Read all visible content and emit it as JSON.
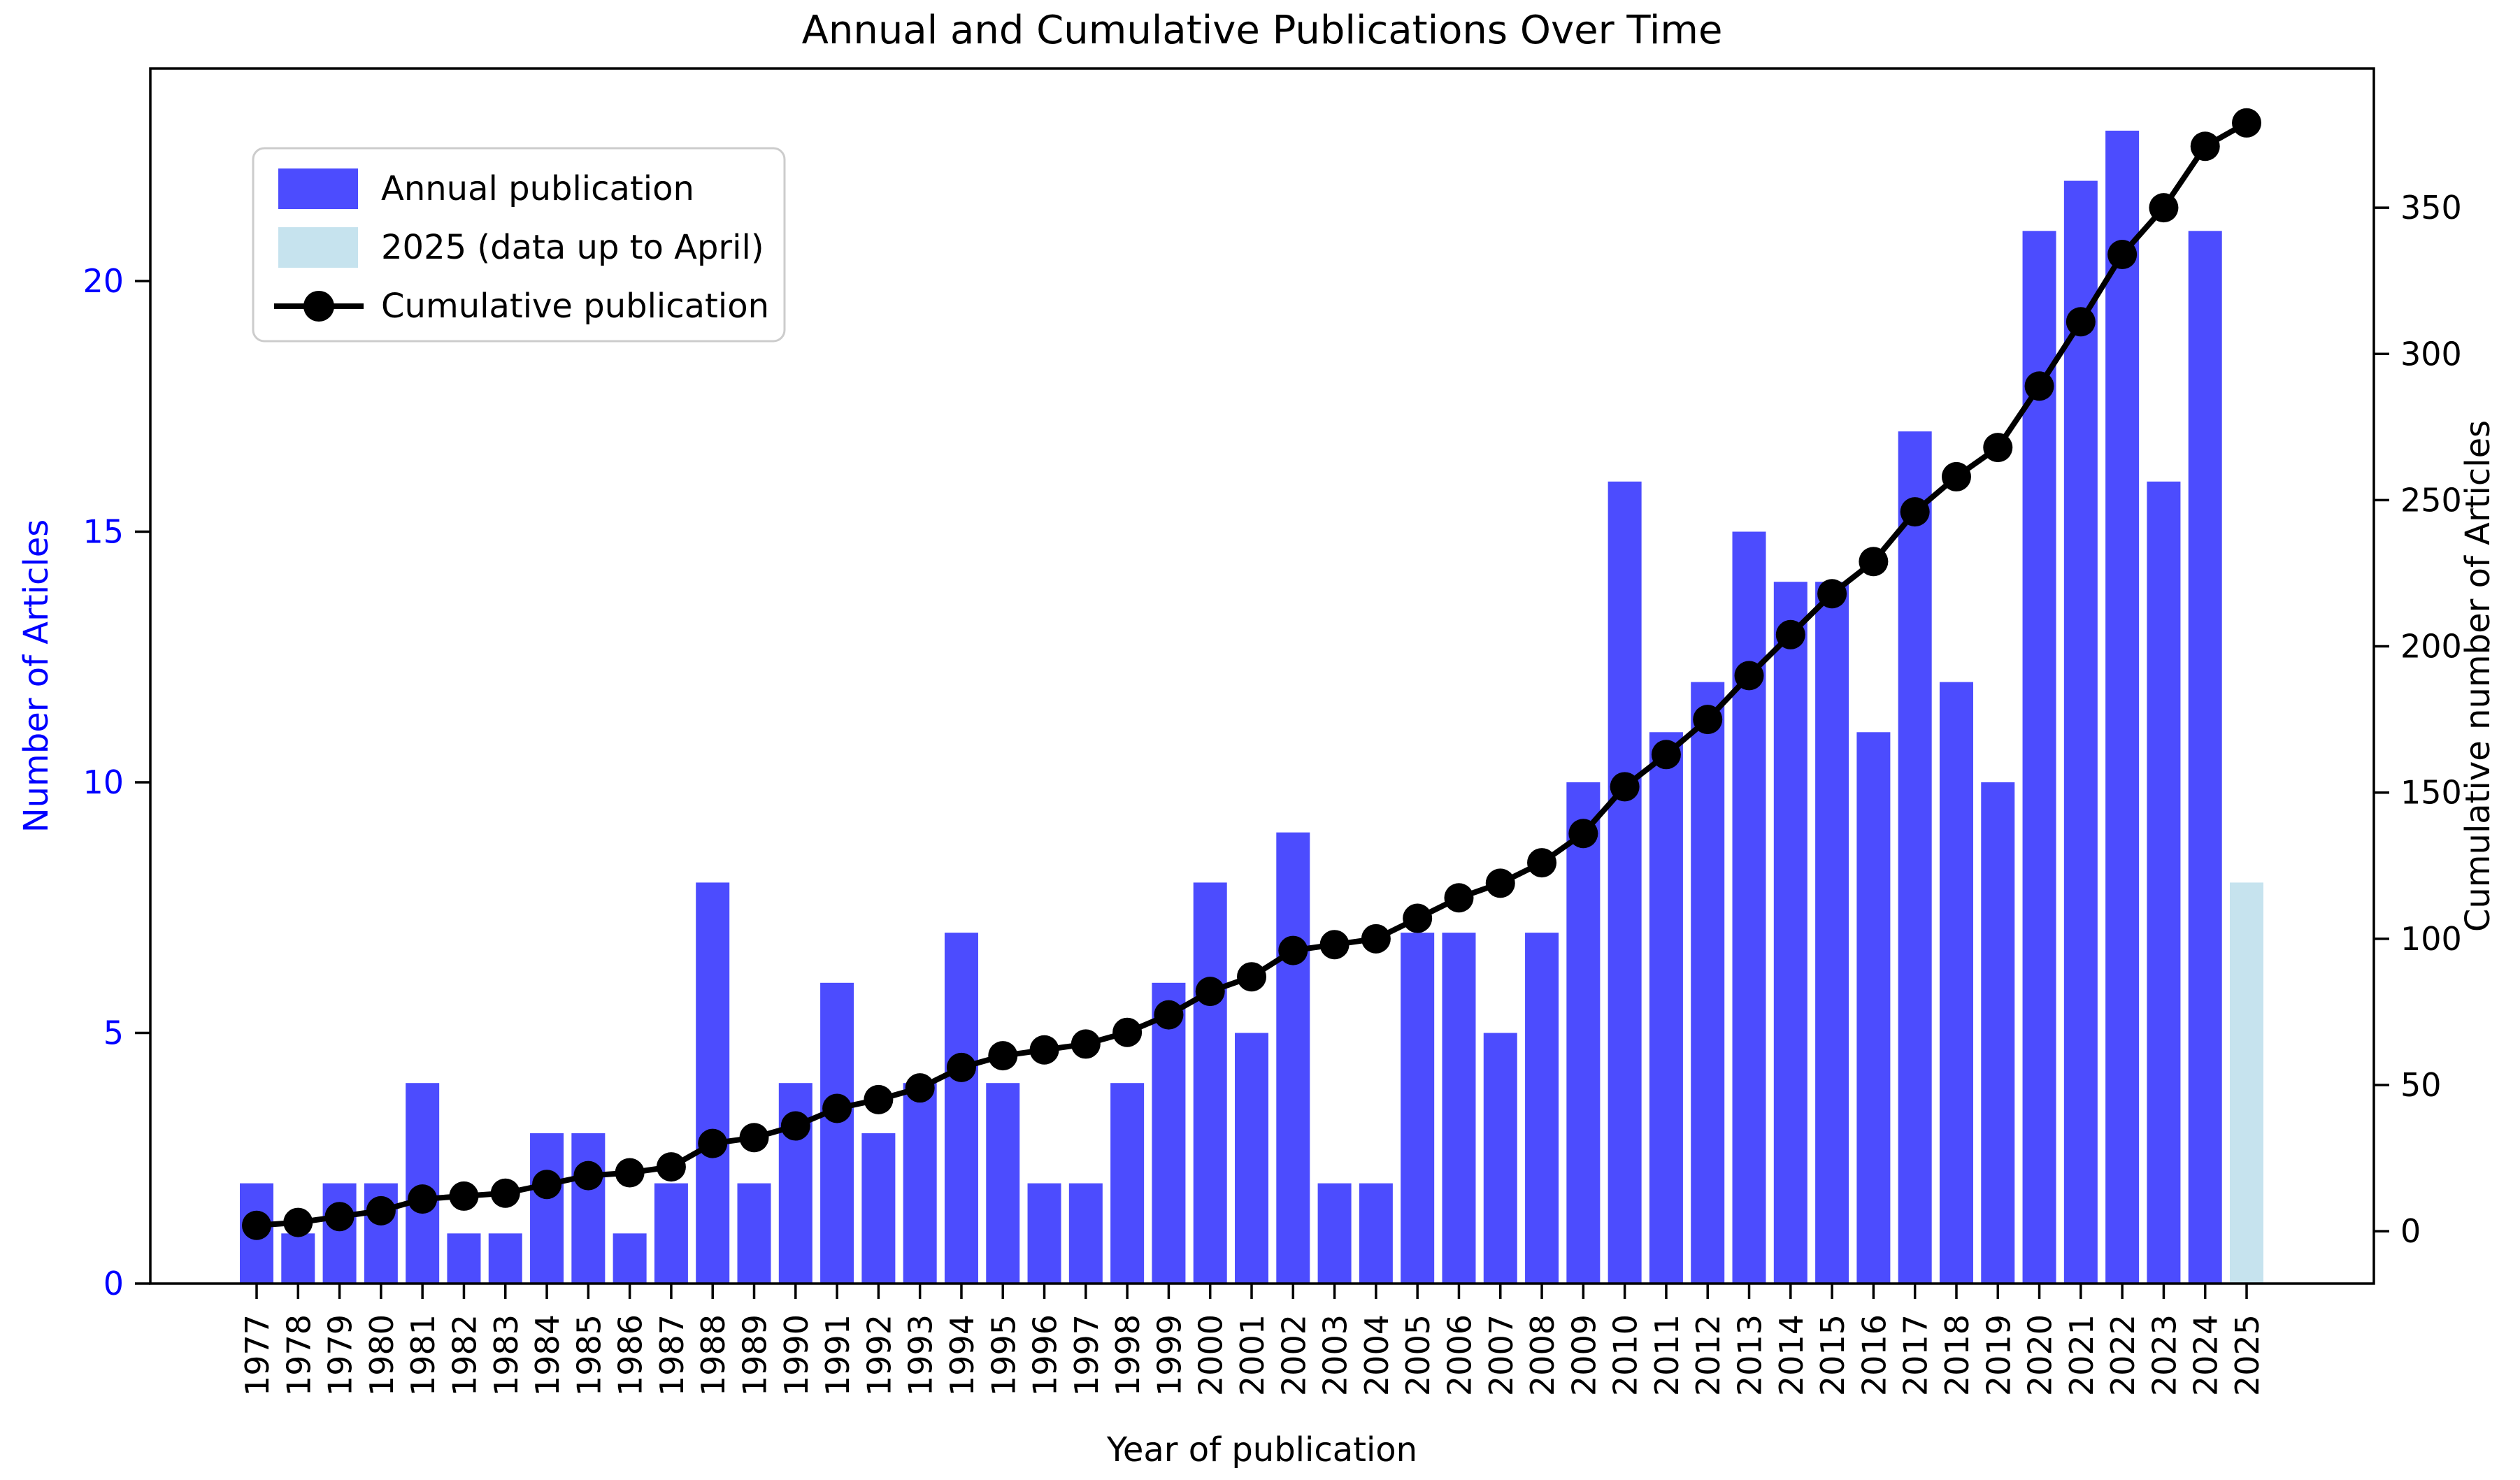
{
  "title": "Annual and Cumulative Publications Over Time",
  "chart_data": {
    "type": "bar+line",
    "title": "Annual and Cumulative Publications Over Time",
    "xlabel": "Year of publication",
    "ylabel_left": "Number of Articles",
    "ylabel_right": "Cumulative number of Articles",
    "categories": [
      1977,
      1978,
      1979,
      1980,
      1981,
      1982,
      1983,
      1984,
      1985,
      1986,
      1987,
      1988,
      1989,
      1990,
      1991,
      1992,
      1993,
      1994,
      1995,
      1996,
      1997,
      1998,
      1999,
      2000,
      2001,
      2002,
      2003,
      2004,
      2005,
      2006,
      2007,
      2008,
      2009,
      2010,
      2011,
      2012,
      2013,
      2014,
      2015,
      2016,
      2017,
      2018,
      2019,
      2020,
      2021,
      2022,
      2023,
      2024,
      2025
    ],
    "series": [
      {
        "name": "Annual publication",
        "type": "bar",
        "axis": "left",
        "values": [
          2,
          1,
          2,
          2,
          4,
          1,
          1,
          3,
          3,
          1,
          2,
          8,
          2,
          4,
          6,
          3,
          4,
          7,
          4,
          2,
          2,
          4,
          6,
          8,
          5,
          9,
          2,
          2,
          7,
          7,
          5,
          7,
          10,
          16,
          11,
          12,
          15,
          14,
          14,
          11,
          17,
          12,
          10,
          21,
          22,
          23,
          16,
          21,
          8
        ]
      },
      {
        "name": "Cumulative publication",
        "type": "line",
        "axis": "right",
        "values": [
          2,
          3,
          5,
          7,
          11,
          12,
          13,
          16,
          19,
          20,
          22,
          30,
          32,
          36,
          42,
          45,
          49,
          56,
          60,
          62,
          64,
          68,
          74,
          82,
          87,
          96,
          98,
          100,
          107,
          114,
          119,
          126,
          136,
          152,
          163,
          175,
          190,
          204,
          218,
          229,
          246,
          258,
          268,
          289,
          311,
          334,
          350,
          371,
          379
        ]
      }
    ],
    "highlight": {
      "year": 2025,
      "label": "2025 (data up to April)"
    },
    "legend": {
      "position": "upper left",
      "items": [
        {
          "label": "Annual publication",
          "swatch": "annual-bar"
        },
        {
          "label": "2025 (data up to April)",
          "swatch": "highlight-bar"
        },
        {
          "label": "Cumulative publication",
          "swatch": "line-marker"
        }
      ]
    },
    "yticks_left": [
      0,
      5,
      10,
      15,
      20
    ],
    "yticks_right": [
      0,
      50,
      100,
      150,
      200,
      250,
      300,
      350
    ],
    "ylim_left": [
      0,
      24.24
    ],
    "ylim_right": [
      -17.9,
      397.6
    ],
    "grid": false,
    "colors": {
      "annual_bar": "#4c4cfe",
      "highlight_bar": "#c6e3ee",
      "cumulative_line": "#000000",
      "marker": "#000000",
      "left_axis_text": "#0000ff",
      "right_axis_text": "#000000",
      "axis_line": "#000000",
      "legend_border": "#cccccc"
    }
  }
}
